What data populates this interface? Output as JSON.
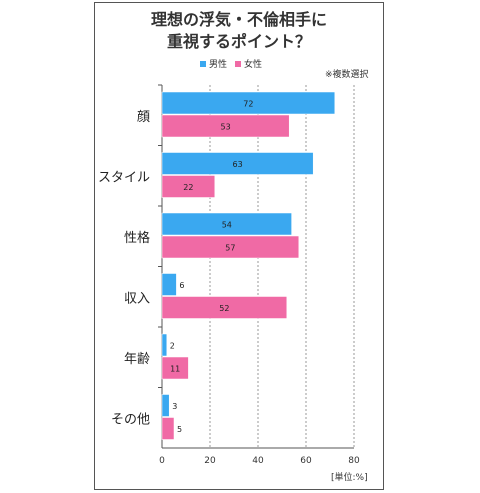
{
  "chart_data": {
    "type": "bar",
    "orientation": "horizontal",
    "title_lines": [
      "理想の浮気・不倫相手に",
      "重視するポイント？"
    ],
    "categories": [
      "顔",
      "スタイル",
      "性格",
      "収入",
      "年齢",
      "その他"
    ],
    "series": [
      {
        "name": "男性",
        "color": "#3aa8f0",
        "values": [
          72,
          63,
          54,
          6,
          2,
          3
        ]
      },
      {
        "name": "女性",
        "color": "#f06aa5",
        "values": [
          53,
          22,
          57,
          52,
          11,
          5
        ]
      }
    ],
    "xlim": [
      0,
      80
    ],
    "xticks": [
      0,
      20,
      40,
      60,
      80
    ],
    "grid": true,
    "note": "※複数選択",
    "unit_label": "[単位:%]"
  }
}
